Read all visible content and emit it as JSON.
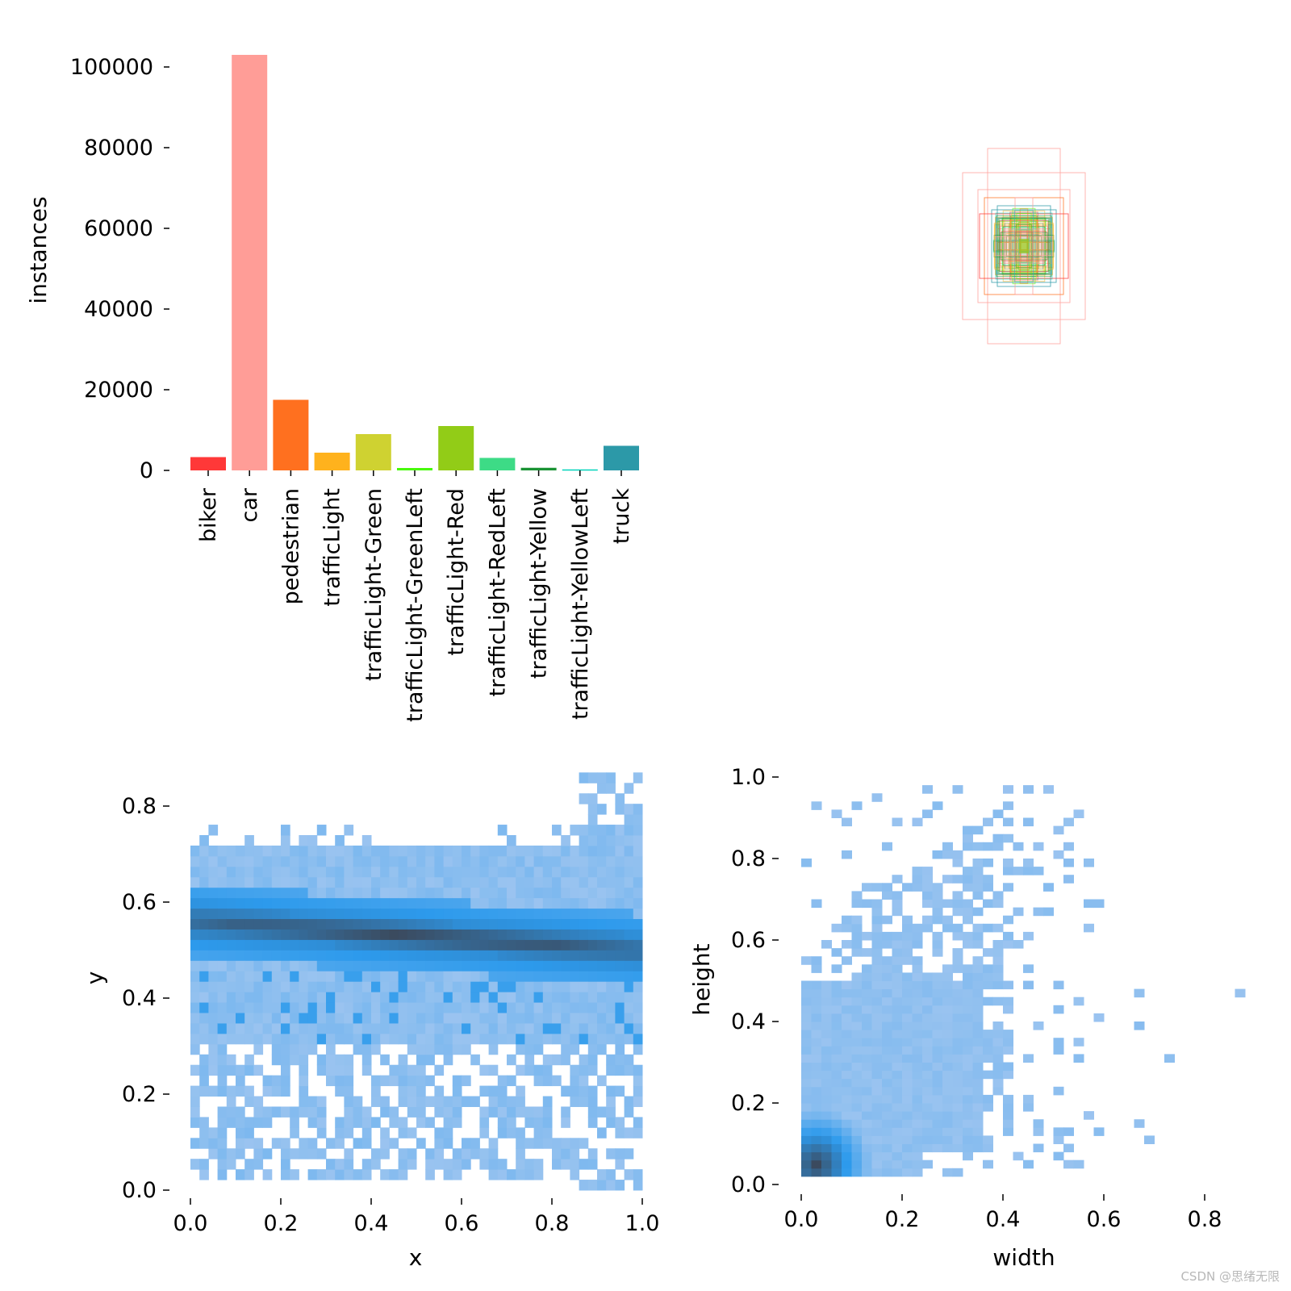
{
  "chart_data": [
    {
      "type": "bar",
      "ylabel": "instances",
      "xlabel": "",
      "ylim": [
        0,
        105000
      ],
      "yticks": [
        0,
        20000,
        40000,
        60000,
        80000,
        100000
      ],
      "categories": [
        "biker",
        "car",
        "pedestrian",
        "trafficLight",
        "trafficLight-Green",
        "trafficLight-GreenLeft",
        "trafficLight-Red",
        "trafficLight-RedLeft",
        "trafficLight-Yellow",
        "trafficLight-YellowLeft",
        "truck"
      ],
      "values": [
        3300,
        103000,
        17500,
        4400,
        9000,
        600,
        11000,
        3100,
        650,
        250,
        6100
      ],
      "colors": [
        "#ff3838",
        "#ff9d97",
        "#ff701f",
        "#ffb21d",
        "#cfd231",
        "#48f90a",
        "#92cc17",
        "#3ddb86",
        "#1a9334",
        "#00d4bb",
        "#2c99a8"
      ],
      "grid": false
    },
    {
      "type": "box_overlay",
      "description_items": [
        "label boxes centered"
      ],
      "colors": [
        "#ff3838",
        "#ff9d97",
        "#ff701f",
        "#ffb21d",
        "#cfd231",
        "#48f90a",
        "#92cc17",
        "#3ddb86",
        "#1a9334",
        "#00d4bb",
        "#2c99a8"
      ]
    },
    {
      "type": "heatmap",
      "xlabel": "x",
      "ylabel": "y",
      "xlim": [
        0,
        1
      ],
      "ylim": [
        0,
        0.87
      ],
      "xticks": [
        "0.0",
        "0.2",
        "0.4",
        "0.6",
        "0.8",
        "1.0"
      ],
      "yticks": [
        "0.0",
        "0.2",
        "0.4",
        "0.6",
        "0.8"
      ],
      "density_band": {
        "y_center_at_x0": 0.56,
        "y_center_at_x1": 0.5,
        "sigma": 0.03
      },
      "colors": {
        "low": "#a6c8f0",
        "mid": "#2d9aec",
        "high": "#3b4a5e"
      }
    },
    {
      "type": "heatmap",
      "xlabel": "width",
      "ylabel": "height",
      "xlim": [
        0,
        0.9
      ],
      "ylim": [
        0,
        1.0
      ],
      "xticks": [
        "0.0",
        "0.2",
        "0.4",
        "0.6",
        "0.8"
      ],
      "yticks": [
        "0.0",
        "0.2",
        "0.4",
        "0.6",
        "0.8",
        "1.0"
      ],
      "peak": {
        "width": 0.03,
        "height": 0.05
      },
      "colors": {
        "low": "#a6c8f0",
        "mid": "#2d9aec",
        "high": "#3b4a5e"
      }
    }
  ],
  "watermark": "CSDN @思绪无限"
}
